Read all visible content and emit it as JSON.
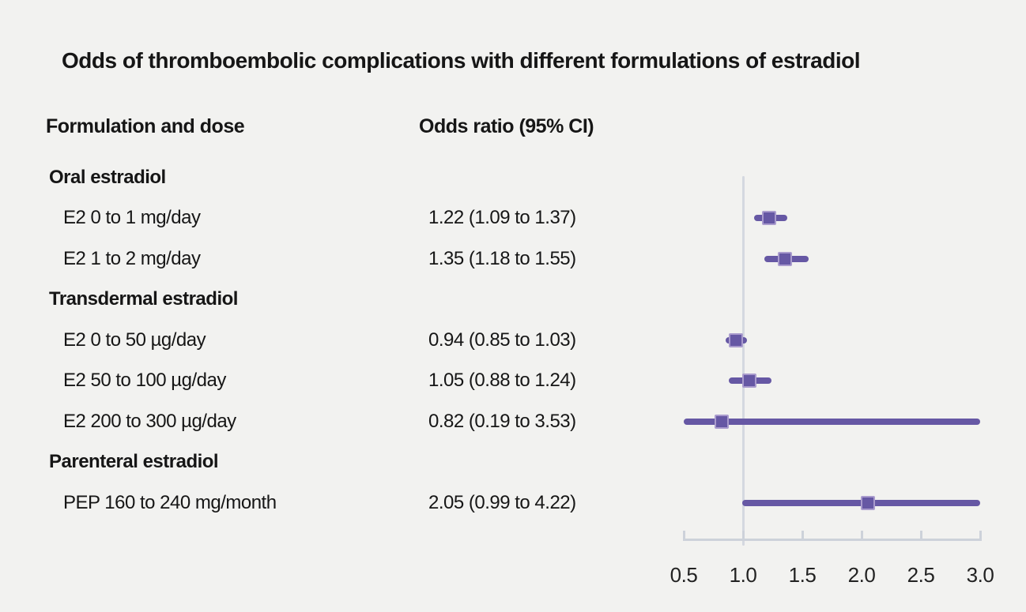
{
  "title": "Odds of thromboembolic complications with different formulations of estradiol",
  "table": {
    "col1": "Formulation and dose",
    "col2": "Odds ratio (95% CI)"
  },
  "chart_data": {
    "type": "forest",
    "title": "Odds of thromboembolic complications with different formulations of estradiol",
    "xlabel": "",
    "ylabel": "",
    "axis": {
      "min": 0.5,
      "max": 3.0,
      "ticks": [
        "0.5",
        "1.0",
        "1.5",
        "2.0",
        "2.5",
        "3.0"
      ],
      "tick_values": [
        0.5,
        1.0,
        1.5,
        2.0,
        2.5,
        3.0
      ],
      "reference_line": 1.0,
      "grid": false
    },
    "groups": [
      {
        "label": "Oral estradiol",
        "rows": [
          {
            "label": "E2 0 to 1 mg/day",
            "or_text": "1.22 (1.09 to 1.37)",
            "or": 1.22,
            "ci_low": 1.09,
            "ci_high": 1.37
          },
          {
            "label": "E2 1 to 2 mg/day",
            "or_text": "1.35 (1.18 to 1.55)",
            "or": 1.35,
            "ci_low": 1.18,
            "ci_high": 1.55
          }
        ]
      },
      {
        "label": "Transdermal estradiol",
        "rows": [
          {
            "label": "E2 0 to 50 µg/day",
            "or_text": "0.94 (0.85 to 1.03)",
            "or": 0.94,
            "ci_low": 0.85,
            "ci_high": 1.03
          },
          {
            "label": "E2 50 to 100 µg/day",
            "or_text": "1.05 (0.88 to 1.24)",
            "or": 1.05,
            "ci_low": 0.88,
            "ci_high": 1.24
          },
          {
            "label": "E2 200 to 300 µg/day",
            "or_text": "0.82 (0.19 to 3.53)",
            "or": 0.82,
            "ci_low": 0.19,
            "ci_high": 3.53
          }
        ]
      },
      {
        "label": "Parenteral estradiol",
        "rows": [
          {
            "label": "PEP 160 to 240 mg/month",
            "or_text": "2.05 (0.99 to 4.22)",
            "or": 2.05,
            "ci_low": 0.99,
            "ci_high": 4.22
          }
        ]
      }
    ],
    "colors": {
      "background": "#f2f2f0",
      "text": "#161616",
      "marker": "#6658a4",
      "marker_border": "#a99bcd",
      "reference_line": "#d4d8e0",
      "axis": "#cdd2da",
      "tick_label": "#222222"
    }
  }
}
